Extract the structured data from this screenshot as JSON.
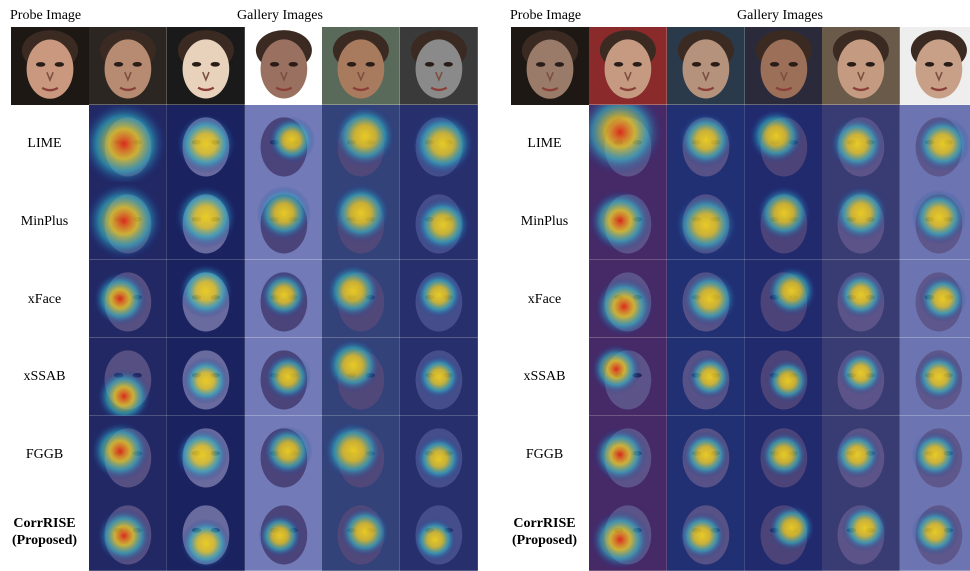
{
  "panels": [
    {
      "probe_label": "Probe Image",
      "gallery_label": "Gallery Images",
      "probe_tone": "#c9987e",
      "gallery_tones": [
        "#b68b72",
        "#e8d2bc",
        "#9a7060",
        "#a87a5e",
        "#8a8a8a"
      ],
      "gallery_bgs": [
        "#2c2622",
        "#1a1a1a",
        "#ffffff",
        "#5a6a5a",
        "#3a3a3a"
      ],
      "methods": [
        {
          "line1": "LIME",
          "line2": "",
          "bold": false
        },
        {
          "line1": "MinPlus",
          "line2": "",
          "bold": false
        },
        {
          "line1": "xFace",
          "line2": "",
          "bold": false
        },
        {
          "line1": "xSSAB",
          "line2": "",
          "bold": false
        },
        {
          "line1": "FGGB",
          "line2": "",
          "bold": false
        },
        {
          "line1": "CorrRISE",
          "line2": "(Proposed)",
          "bold": true
        }
      ]
    },
    {
      "probe_label": "Probe Image",
      "gallery_label": "Gallery Images",
      "probe_tone": "#9a7a68",
      "gallery_tones": [
        "#c69a80",
        "#b5927c",
        "#9c6f58",
        "#c49a80",
        "#c8a088"
      ],
      "gallery_bgs": [
        "#8a2a2a",
        "#2a3a4a",
        "#2a2a3a",
        "#6a5a4a",
        "#eeeeee"
      ],
      "methods": [
        {
          "line1": "LIME",
          "line2": "",
          "bold": false
        },
        {
          "line1": "MinPlus",
          "line2": "",
          "bold": false
        },
        {
          "line1": "xFace",
          "line2": "",
          "bold": false
        },
        {
          "line1": "xSSAB",
          "line2": "",
          "bold": false
        },
        {
          "line1": "FGGB",
          "line2": "",
          "bold": false
        },
        {
          "line1": "CorrRISE",
          "line2": "(Proposed)",
          "bold": true
        }
      ]
    }
  ],
  "colors": {
    "heat_base": "#1c2a8c",
    "heat_mid": "#2fb7c9",
    "heat_warm": "#f0d020",
    "heat_hot": "#e02818"
  }
}
